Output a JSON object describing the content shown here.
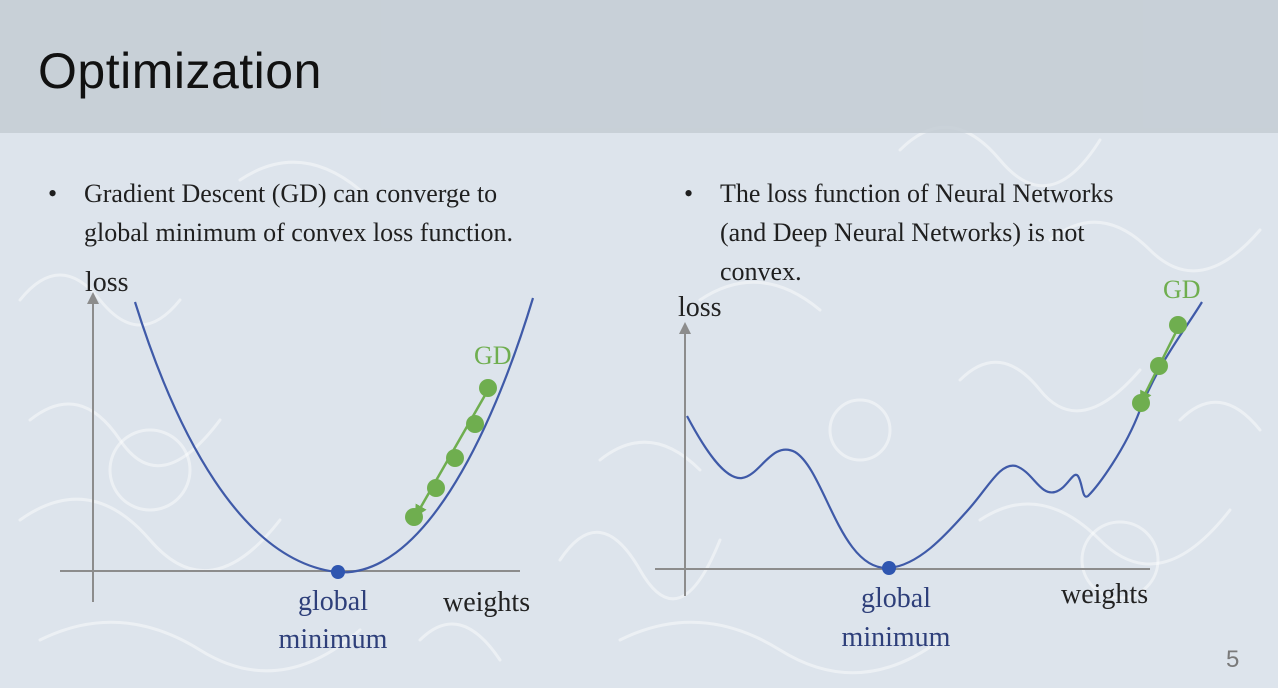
{
  "slide": {
    "title": "Optimization",
    "page_number": "5"
  },
  "bullets": {
    "left": {
      "marker": "•",
      "line1": "Gradient Descent (GD) can converge to",
      "line2": "global minimum of convex loss function."
    },
    "right": {
      "marker": "•",
      "line1": "The loss function of Neural Networks",
      "line2": "(and Deep Neural Networks) is not",
      "line3": "convex."
    }
  },
  "diagrams": {
    "convex": {
      "y_axis_label": "loss",
      "x_axis_label": "weights",
      "gd_label": "GD",
      "minimum_label_line1": "global",
      "minimum_label_line2": "minimum"
    },
    "non_convex": {
      "y_axis_label": "loss",
      "x_axis_label": "weights",
      "gd_label": "GD",
      "minimum_label_line1": "global",
      "minimum_label_line2": "minimum"
    }
  },
  "colors": {
    "curve": "#3f5aa8",
    "gd_points": "#6fae4f",
    "minimum_point": "#2f56b0",
    "axis": "#8c8c8c",
    "minimum_label": "#2e3f7a"
  }
}
